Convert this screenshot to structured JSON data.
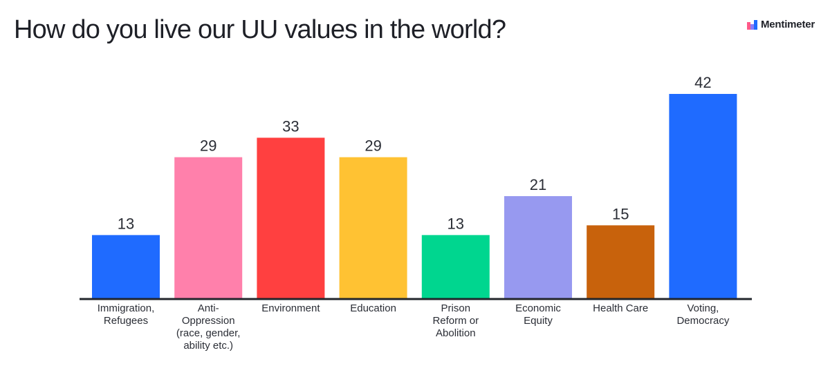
{
  "header": {
    "title": "How do you live our UU values in the world?",
    "brand": "Mentimeter",
    "brand_icon": "mentimeter-logo-icon"
  },
  "chart_data": {
    "type": "bar",
    "title": "How do you live our UU values in the world?",
    "xlabel": "",
    "ylabel": "",
    "ylim": [
      0,
      42
    ],
    "grid": false,
    "legend": "none",
    "categories": [
      [
        "Immigration,",
        "Refugees"
      ],
      [
        "Anti-",
        "Oppression",
        "(race, gender,",
        "ability etc.)"
      ],
      [
        "Environment"
      ],
      [
        "Education"
      ],
      [
        "Prison",
        "Reform or",
        "Abolition"
      ],
      [
        "Economic",
        "Equity"
      ],
      [
        "Health Care"
      ],
      [
        "Voting,",
        "Democracy"
      ]
    ],
    "values": [
      13,
      29,
      33,
      29,
      13,
      21,
      15,
      42
    ],
    "colors": [
      "#1f6bff",
      "#ff80ab",
      "#ff4040",
      "#ffc233",
      "#00d68f",
      "#9799f0",
      "#c8620c",
      "#1f6bff"
    ],
    "axis_color": "#22252b"
  }
}
